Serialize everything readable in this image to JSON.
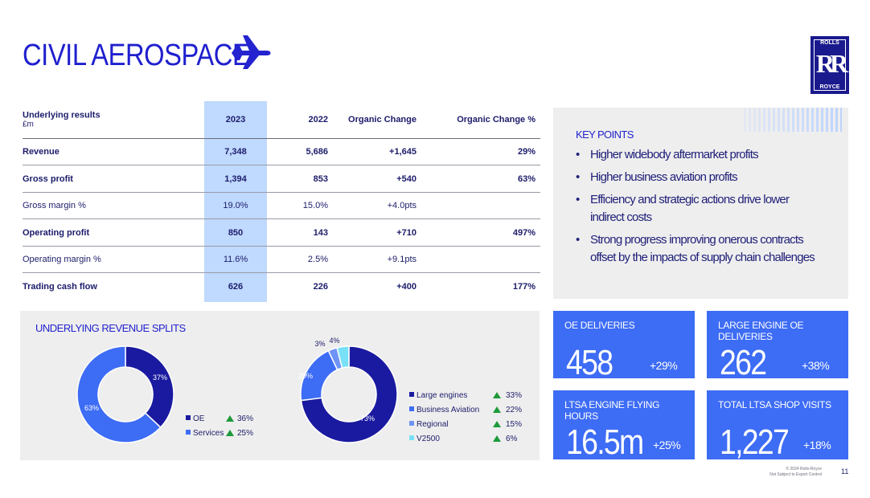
{
  "title": "CIVIL AEROSPACE",
  "logo": {
    "top": "ROLLS",
    "mark": "RR",
    "bottom": "ROYCE"
  },
  "table": {
    "header": {
      "label": "Underlying results",
      "unit": "£m",
      "c1": "2023",
      "c2": "2022",
      "c3": "Organic Change",
      "c4": "Organic Change %"
    },
    "rows": [
      {
        "label": "Revenue",
        "c1": "7,348",
        "c2": "5,686",
        "c3": "+1,645",
        "c4": "29%",
        "bold": true
      },
      {
        "label": "Gross profit",
        "c1": "1,394",
        "c2": "853",
        "c3": "+540",
        "c4": "63%",
        "bold": true
      },
      {
        "label": "Gross margin %",
        "c1": "19.0%",
        "c2": "15.0%",
        "c3": "+4.0pts",
        "c4": "",
        "bold": false
      },
      {
        "label": "Operating profit",
        "c1": "850",
        "c2": "143",
        "c3": "+710",
        "c4": "497%",
        "bold": true
      },
      {
        "label": "Operating margin %",
        "c1": "11.6%",
        "c2": "2.5%",
        "c3": "+9.1pts",
        "c4": "",
        "bold": false
      },
      {
        "label": "Trading cash flow",
        "c1": "626",
        "c2": "226",
        "c3": "+400",
        "c4": "177%",
        "bold": true
      }
    ]
  },
  "key_points": {
    "title": "KEY POINTS",
    "items": [
      "Higher widebody aftermarket profits",
      "Higher business aviation profits",
      "Efficiency and strategic actions drive lower indirect costs",
      "Strong progress improving onerous contracts offset by the impacts of supply chain challenges"
    ]
  },
  "revenue_splits": {
    "title": "UNDERLYING REVENUE SPLITS"
  },
  "chart_data": [
    {
      "type": "pie",
      "donut": true,
      "categories": [
        "OE",
        "Services"
      ],
      "values": [
        37,
        63
      ],
      "slice_labels": [
        "37%",
        "63%"
      ],
      "changes": [
        "36%",
        "25%"
      ],
      "colors": [
        "#1a1aa0",
        "#3d6cf5"
      ],
      "legend_position": "right"
    },
    {
      "type": "pie",
      "donut": true,
      "categories": [
        "Large engines",
        "Business Aviation",
        "Regional",
        "V2500"
      ],
      "values": [
        73,
        20,
        3,
        4
      ],
      "slice_labels": [
        "73%",
        "20%",
        "3%",
        "4%"
      ],
      "changes": [
        "33%",
        "22%",
        "15%",
        "6%"
      ],
      "colors": [
        "#1a1aa0",
        "#3d6cf5",
        "#6f93f7",
        "#78e0f7"
      ],
      "legend_position": "right"
    }
  ],
  "tiles": [
    {
      "title": "OE DELIVERIES",
      "value": "458",
      "change": "+29%"
    },
    {
      "title": "LARGE ENGINE OE DELIVERIES",
      "value": "262",
      "change": "+38%"
    },
    {
      "title": "LTSA ENGINE FLYING HOURS",
      "value": "16.5m",
      "change": "+25%"
    },
    {
      "title": "TOTAL LTSA SHOP VISITS",
      "value": "1,227",
      "change": "+18%"
    }
  ],
  "footer": {
    "line1": "© 2024 Rolls-Royce",
    "line2": "Not Subject to Export Control",
    "page": "11"
  },
  "colors": {
    "accent": "#2323cf",
    "tile": "#3d6cf5",
    "dark": "#1a1aa0",
    "highlight": "#bfd9ff",
    "up": "#1e9a3a"
  },
  "icons": {
    "plane": "plane-icon",
    "up": "triangle-up-icon"
  }
}
